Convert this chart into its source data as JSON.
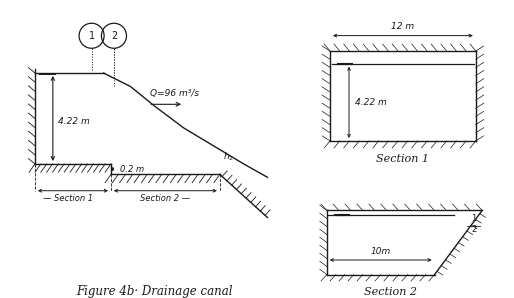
{
  "bg_color": "#ffffff",
  "line_color": "#1a1a1a",
  "fig_caption": "Figure 4b· Drainage canal",
  "section1_label": "Section 1",
  "section2_label": "Section 2",
  "flow_label": "Q=96 m³/s",
  "depth_label": "4.22 m",
  "step_label": "0.2 m",
  "sec1_width_label": "12 m",
  "sec1_depth_label": "4.22 m",
  "sec2_width_label": "10m",
  "font_size": 6.5,
  "title_font_size": 8
}
